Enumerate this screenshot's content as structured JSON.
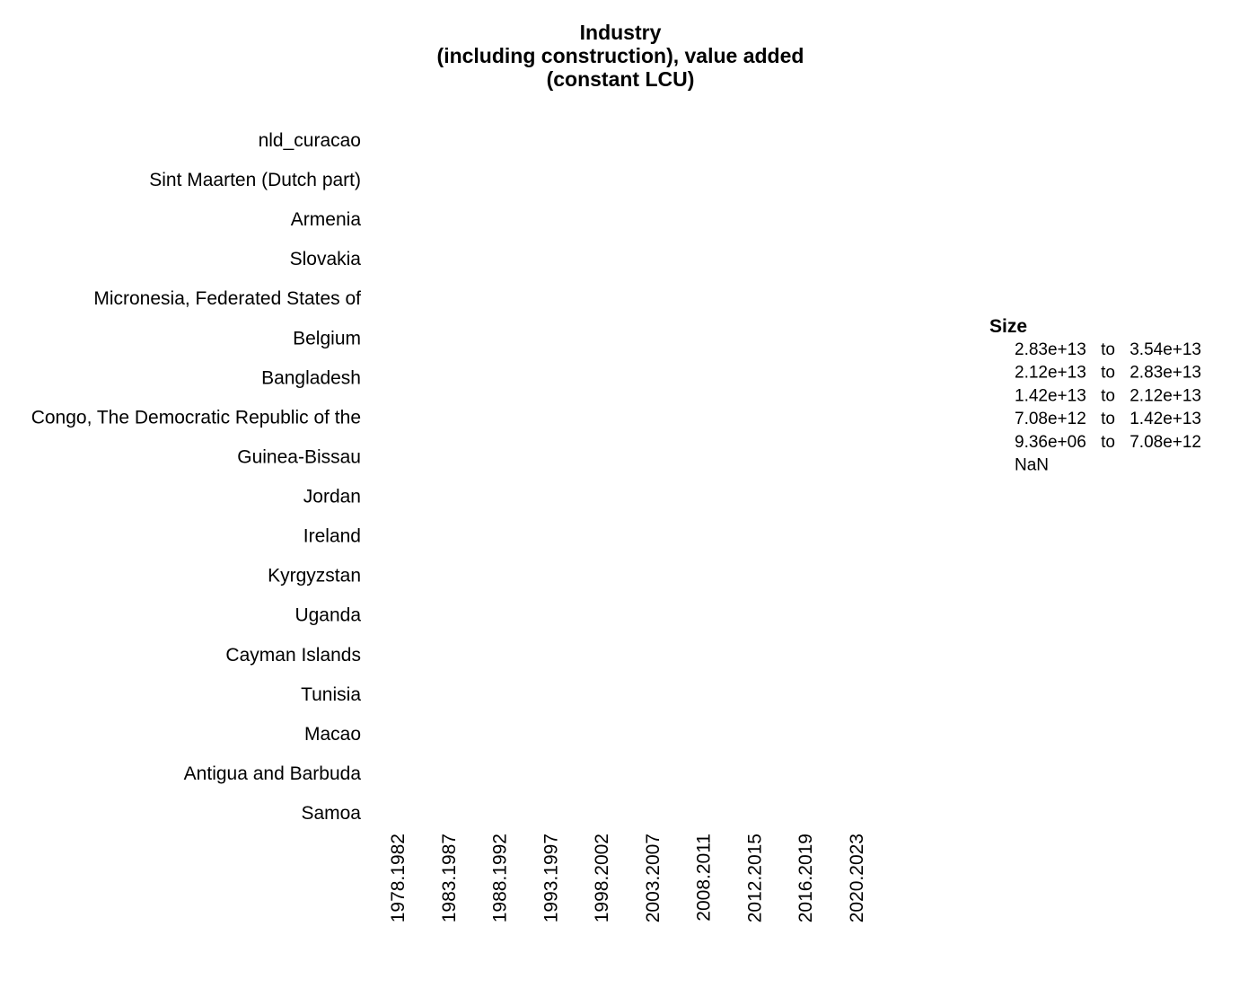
{
  "chart_data": {
    "type": "scatter",
    "title_lines": [
      "Industry",
      "(including construction), value added",
      "(constant LCU)"
    ],
    "categories": [
      "nld_curacao",
      "Sint Maarten (Dutch part)",
      "Armenia",
      "Slovakia",
      "Micronesia, Federated States of",
      "Belgium",
      "Bangladesh",
      "Congo, The Democratic Republic of the",
      "Guinea-Bissau",
      "Jordan",
      "Ireland",
      "Kyrgyzstan",
      "Uganda",
      "Cayman Islands",
      "Tunisia",
      "Macao",
      "Antigua and Barbuda",
      "Samoa"
    ],
    "x": [
      "1978.1982",
      "1983.1987",
      "1988.1992",
      "1993.1997",
      "1998.2002",
      "2003.2007",
      "2008.2011",
      "2012.2015",
      "2016.2019",
      "2020.2023"
    ],
    "series": [],
    "legend": {
      "title": "Size",
      "position": "right",
      "entries": [
        {
          "from": "2.83e+13",
          "sep": "to",
          "to": "3.54e+13"
        },
        {
          "from": "2.12e+13",
          "sep": "to",
          "to": "2.83e+13"
        },
        {
          "from": "1.42e+13",
          "sep": "to",
          "to": "2.12e+13"
        },
        {
          "from": "7.08e+12",
          "sep": "to",
          "to": "1.42e+13"
        },
        {
          "from": "9.36e+06",
          "sep": "to",
          "to": "7.08e+12"
        },
        {
          "from": "NaN",
          "sep": "",
          "to": ""
        }
      ]
    },
    "grid": false
  }
}
